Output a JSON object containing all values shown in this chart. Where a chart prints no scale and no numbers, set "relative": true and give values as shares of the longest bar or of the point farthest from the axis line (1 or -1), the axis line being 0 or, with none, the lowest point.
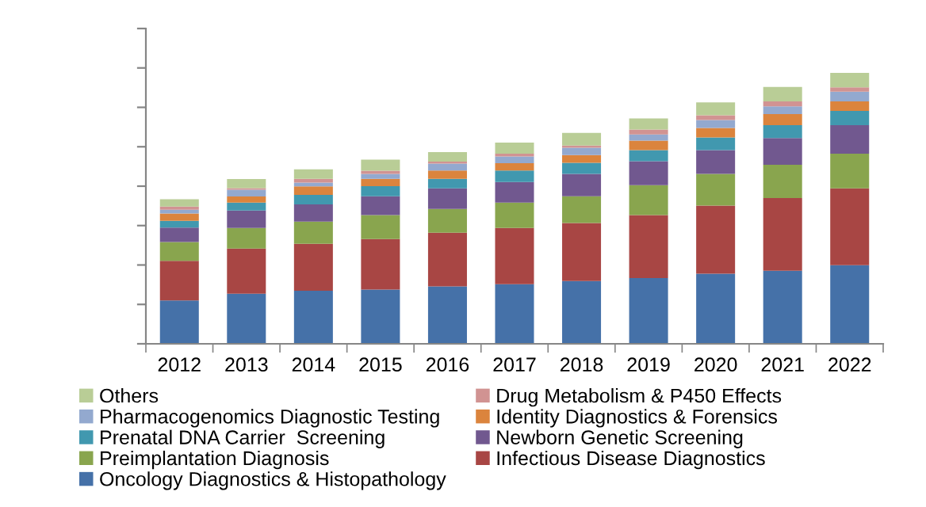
{
  "chart_data": {
    "type": "bar",
    "stacked": true,
    "relative": true,
    "legend": "bottom",
    "grid": false,
    "categories": [
      "2012",
      "2013",
      "2014",
      "2015",
      "2016",
      "2017",
      "2018",
      "2019",
      "2020",
      "2021",
      "2022"
    ],
    "series": [
      {
        "name": "Oncology Diagnostics & Histopathology",
        "color": "#4571a8",
        "values": [
          0.16,
          0.185,
          0.196,
          0.2,
          0.212,
          0.22,
          0.232,
          0.243,
          0.259,
          0.27,
          0.29
        ]
      },
      {
        "name": "Infectious Disease Diagnostics",
        "color": "#a84644",
        "values": [
          0.146,
          0.167,
          0.173,
          0.187,
          0.198,
          0.208,
          0.214,
          0.232,
          0.251,
          0.268,
          0.284
        ]
      },
      {
        "name": "Preimplantation Diagnosis",
        "color": "#89a54e",
        "values": [
          0.07,
          0.076,
          0.082,
          0.088,
          0.088,
          0.093,
          0.099,
          0.111,
          0.117,
          0.123,
          0.128
        ]
      },
      {
        "name": "Newborn Genetic Screening",
        "color": "#71588f",
        "values": [
          0.053,
          0.064,
          0.064,
          0.07,
          0.076,
          0.076,
          0.082,
          0.088,
          0.088,
          0.099,
          0.105
        ]
      },
      {
        "name": "Prenatal DNA Carrier  Screening",
        "color": "#4198af",
        "values": [
          0.025,
          0.029,
          0.035,
          0.037,
          0.035,
          0.043,
          0.041,
          0.041,
          0.047,
          0.047,
          0.053
        ]
      },
      {
        "name": "Identity Diagnostics & Forensics",
        "color": "#db843d",
        "values": [
          0.027,
          0.023,
          0.031,
          0.027,
          0.031,
          0.027,
          0.029,
          0.035,
          0.035,
          0.041,
          0.035
        ]
      },
      {
        "name": "Pharmacogenomics Diagnostic Testing",
        "color": "#93a9cf",
        "values": [
          0.014,
          0.025,
          0.014,
          0.018,
          0.025,
          0.025,
          0.027,
          0.023,
          0.029,
          0.029,
          0.036
        ]
      },
      {
        "name": "Drug Metabolism & P450 Effects",
        "color": "#d19392",
        "values": [
          0.012,
          0.006,
          0.014,
          0.012,
          0.008,
          0.01,
          0.008,
          0.018,
          0.018,
          0.018,
          0.016
        ]
      },
      {
        "name": "Others",
        "color": "#b9cd96",
        "values": [
          0.027,
          0.033,
          0.035,
          0.041,
          0.035,
          0.041,
          0.047,
          0.041,
          0.047,
          0.053,
          0.053
        ]
      }
    ]
  }
}
